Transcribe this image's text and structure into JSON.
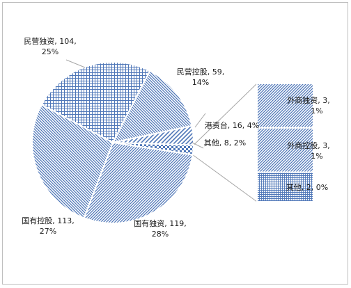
{
  "chart_data": {
    "type": "pie",
    "subtype": "bar-of-pie",
    "title": "",
    "slices": [
      {
        "name": "民营独资",
        "value": 104,
        "percent": "25%",
        "label_line1": "民营独资, 104,",
        "label_line2": "25%"
      },
      {
        "name": "民营控股",
        "value": 59,
        "percent": "14%",
        "label_line1": "民营控股, 59,",
        "label_line2": "14%"
      },
      {
        "name": "港资台",
        "value": 16,
        "percent": "4%",
        "label_line1": "港资台, 16, 4%",
        "label_line2": ""
      },
      {
        "name": "其他",
        "value": 8,
        "percent": "2%",
        "label_line1": "其他, 8, 2%",
        "label_line2": ""
      },
      {
        "name": "国有独资",
        "value": 119,
        "percent": "28%",
        "label_line1": "国有独资, 119,",
        "label_line2": "28%"
      },
      {
        "name": "国有控股",
        "value": 113,
        "percent": "27%",
        "label_line1": "国有控股, 113,",
        "label_line2": "27%"
      }
    ],
    "breakout": {
      "of_slice": "其他",
      "segments": [
        {
          "name": "外商独资",
          "value": 3,
          "percent": "1%",
          "label_line1": "外商独资, 3,",
          "label_line2": "1%"
        },
        {
          "name": "外商控股",
          "value": 3,
          "percent": "1%",
          "label_line1": "外商控股, 3,",
          "label_line2": "1%"
        },
        {
          "name": "其他",
          "value": 2,
          "percent": "0%",
          "label_line1": "其他, 2, 0%",
          "label_line2": ""
        }
      ]
    },
    "colors": {
      "fill": "#4f77b8",
      "background": "#ffffff",
      "divider": "#ffffff",
      "connector": "#a6a6a6",
      "frame": "#bfbfbf"
    },
    "legend": "none"
  }
}
